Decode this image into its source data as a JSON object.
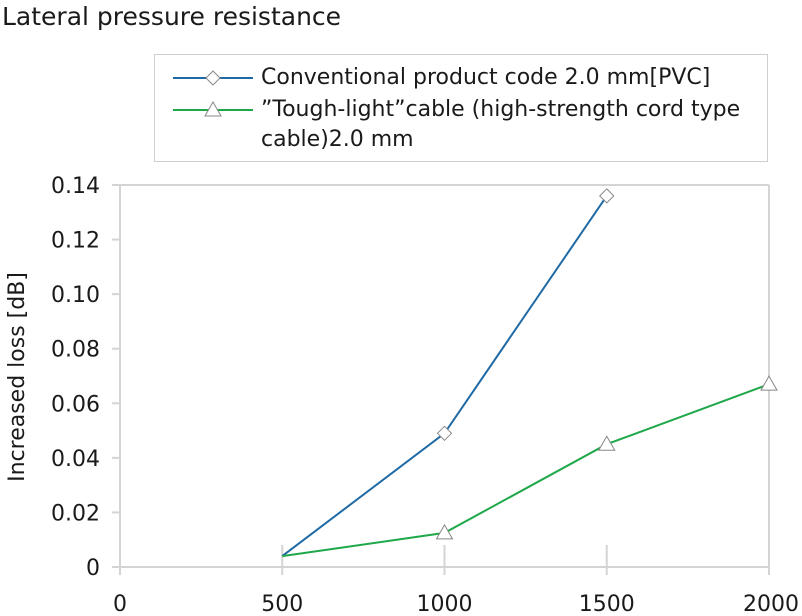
{
  "chart_data": {
    "type": "line",
    "title": "Lateral pressure resistance",
    "xlabel": "",
    "ylabel": "Increased loss [dB]",
    "xlim": [
      0,
      2000
    ],
    "ylim": [
      0,
      0.14
    ],
    "x_ticks": [
      "0",
      "500",
      "1000",
      "1500",
      "2000"
    ],
    "y_ticks": [
      "0",
      "0.02",
      "0.04",
      "0.06",
      "0.08",
      "0.10",
      "0.12",
      "0.14"
    ],
    "grid": "vertical-ticks-only",
    "legend_position": "top",
    "series": [
      {
        "name": "Conventional product code 2.0 mm[PVC]",
        "color": "#1f6aa5",
        "marker": "diamond",
        "x": [
          500,
          1000,
          1500
        ],
        "y": [
          0.004,
          0.049,
          0.136
        ]
      },
      {
        "name": "”Tough-light”cable (high-strength cord type cable)2.0 mm",
        "color": "#1fa84a",
        "marker": "triangle",
        "x": [
          500,
          1000,
          1500,
          2000
        ],
        "y": [
          0.004,
          0.0125,
          0.045,
          0.067
        ]
      }
    ]
  }
}
